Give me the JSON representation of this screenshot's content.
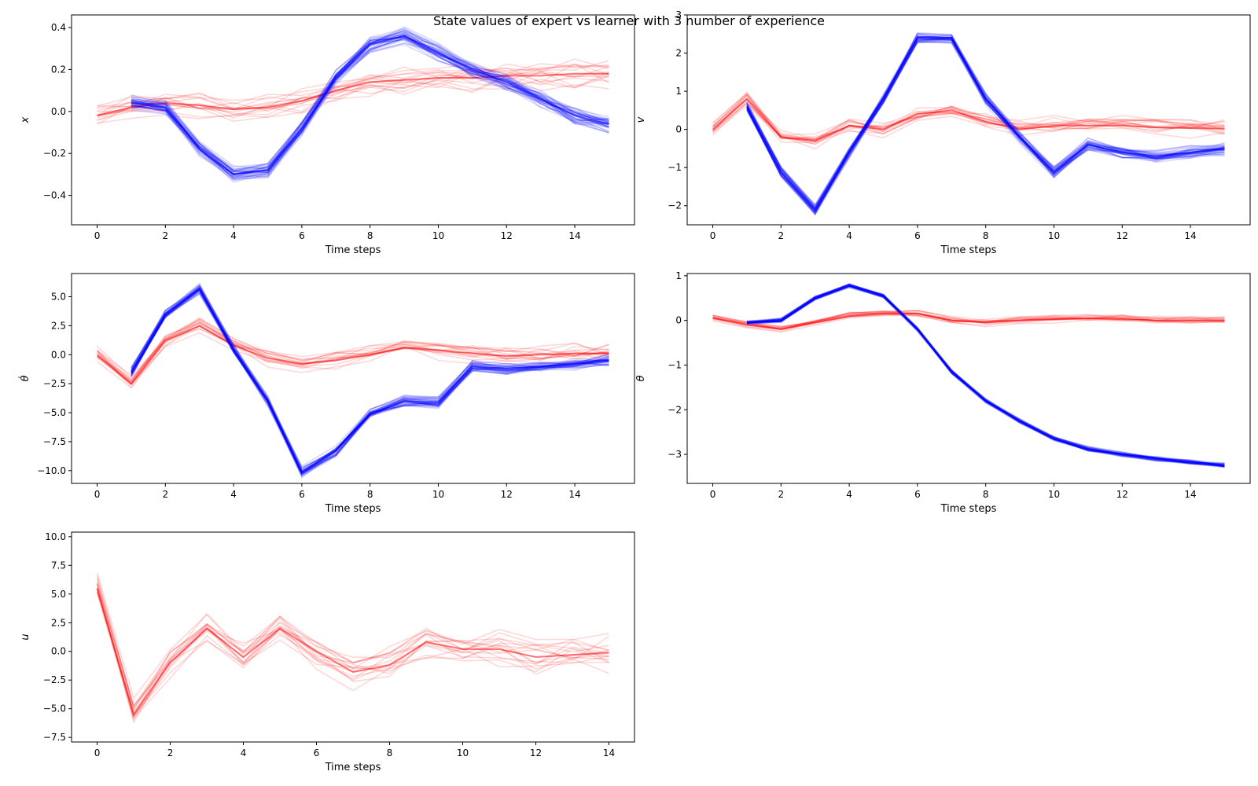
{
  "figure": {
    "title": "State values of expert vs learner with 3 number of experience",
    "colors": {
      "expert": "#ff0000",
      "learner": "#0000ff"
    }
  },
  "chart_data": [
    {
      "type": "line",
      "ylabel": "x",
      "xlabel": "Time steps",
      "xlim": [
        -0.75,
        15.75
      ],
      "ylim": [
        -0.54,
        0.46
      ],
      "xticks": [
        "0",
        "2",
        "4",
        "6",
        "8",
        "10",
        "12",
        "14"
      ],
      "yticks": [
        "−0.4",
        "−0.2",
        "0.0",
        "0.2",
        "0.4"
      ],
      "series": [
        {
          "group": "expert",
          "x": [
            0,
            1,
            2,
            3,
            4,
            5,
            6,
            7,
            8,
            9,
            10,
            11,
            12,
            13,
            14,
            15
          ],
          "values": [
            -0.02,
            0.02,
            0.04,
            0.03,
            0.01,
            0.02,
            0.05,
            0.1,
            0.14,
            0.15,
            0.16,
            0.16,
            0.17,
            0.17,
            0.18,
            0.18
          ]
        },
        {
          "group": "learner",
          "x": [
            1,
            2,
            3,
            4,
            5,
            6,
            7,
            8,
            9,
            10,
            11,
            12,
            13,
            14,
            15
          ],
          "values": [
            0.04,
            0.02,
            -0.18,
            -0.3,
            -0.28,
            -0.08,
            0.16,
            0.32,
            0.36,
            0.28,
            0.2,
            0.14,
            0.06,
            -0.02,
            -0.06
          ]
        }
      ]
    },
    {
      "type": "line",
      "ylabel": "v",
      "xlabel": "Time steps",
      "xlim": [
        -0.75,
        15.75
      ],
      "ylim": [
        -2.5,
        3.0
      ],
      "xticks": [
        "0",
        "2",
        "4",
        "6",
        "8",
        "10",
        "12",
        "14"
      ],
      "yticks": [
        "−2",
        "−1",
        "0",
        "1",
        "2",
        "3"
      ],
      "series": [
        {
          "group": "expert",
          "x": [
            0,
            1,
            2,
            3,
            4,
            5,
            6,
            7,
            8,
            9,
            10,
            11,
            12,
            13,
            14,
            15
          ],
          "values": [
            0.0,
            0.8,
            -0.2,
            -0.3,
            0.1,
            0.0,
            0.4,
            0.5,
            0.2,
            0.0,
            0.1,
            0.1,
            0.1,
            0.05,
            0.03,
            0.02
          ]
        },
        {
          "group": "learner",
          "x": [
            1,
            2,
            3,
            4,
            5,
            6,
            7,
            8,
            9,
            10,
            11,
            12,
            13,
            14,
            15
          ],
          "values": [
            0.6,
            -1.1,
            -2.1,
            -0.6,
            0.8,
            2.4,
            2.4,
            0.8,
            -0.2,
            -1.1,
            -0.4,
            -0.6,
            -0.7,
            -0.6,
            -0.5
          ]
        }
      ]
    },
    {
      "type": "line",
      "ylabel": "θ̇",
      "xlabel": "Time steps",
      "xlim": [
        -0.75,
        15.75
      ],
      "ylim": [
        -11.1,
        7.0
      ],
      "xticks": [
        "0",
        "2",
        "4",
        "6",
        "8",
        "10",
        "12",
        "14"
      ],
      "yticks": [
        "−10.0",
        "−7.5",
        "−5.0",
        "−2.5",
        "0.0",
        "2.5",
        "5.0"
      ],
      "series": [
        {
          "group": "expert",
          "x": [
            0,
            1,
            2,
            3,
            4,
            5,
            6,
            7,
            8,
            9,
            10,
            11,
            12,
            13,
            14,
            15
          ],
          "values": [
            0.0,
            -2.5,
            1.2,
            2.5,
            0.8,
            -0.3,
            -0.8,
            -0.5,
            0.0,
            0.6,
            0.4,
            0.1,
            -0.1,
            0.0,
            0.1,
            0.1
          ]
        },
        {
          "group": "learner",
          "x": [
            1,
            2,
            3,
            4,
            5,
            6,
            7,
            8,
            9,
            10,
            11,
            12,
            13,
            14,
            15
          ],
          "values": [
            -1.5,
            3.5,
            5.7,
            0.5,
            -4.0,
            -10.1,
            -8.3,
            -5.1,
            -4.0,
            -4.1,
            -1.0,
            -1.2,
            -1.0,
            -0.8,
            -0.5
          ]
        }
      ]
    },
    {
      "type": "line",
      "ylabel": "θ",
      "xlabel": "Time steps",
      "xlim": [
        -0.75,
        15.75
      ],
      "ylim": [
        -3.65,
        1.05
      ],
      "xticks": [
        "0",
        "2",
        "4",
        "6",
        "8",
        "10",
        "12",
        "14"
      ],
      "yticks": [
        "−3",
        "−2",
        "−1",
        "0",
        "1"
      ],
      "series": [
        {
          "group": "expert",
          "x": [
            0,
            1,
            2,
            3,
            4,
            5,
            6,
            7,
            8,
            9,
            10,
            11,
            12,
            13,
            14,
            15
          ],
          "values": [
            0.05,
            -0.1,
            -0.2,
            -0.05,
            0.1,
            0.15,
            0.15,
            0.0,
            -0.05,
            0.0,
            0.03,
            0.05,
            0.03,
            0.0,
            0.0,
            0.0
          ]
        },
        {
          "group": "learner",
          "x": [
            1,
            2,
            3,
            4,
            5,
            6,
            7,
            8,
            9,
            10,
            11,
            12,
            13,
            14,
            15
          ],
          "values": [
            -0.05,
            0.0,
            0.5,
            0.78,
            0.55,
            -0.2,
            -1.15,
            -1.8,
            -2.25,
            -2.65,
            -2.88,
            -3.0,
            -3.1,
            -3.18,
            -3.25
          ]
        }
      ]
    },
    {
      "type": "line",
      "ylabel": "u",
      "xlabel": "Time steps",
      "xlim": [
        -0.7,
        14.7
      ],
      "ylim": [
        -7.9,
        10.4
      ],
      "xticks": [
        "0",
        "2",
        "4",
        "6",
        "8",
        "10",
        "12",
        "14"
      ],
      "yticks": [
        "−7.5",
        "−5.0",
        "−2.5",
        "0.0",
        "2.5",
        "5.0",
        "7.5",
        "10.0"
      ],
      "series": [
        {
          "group": "expert",
          "x": [
            0,
            1,
            2,
            3,
            4,
            5,
            6,
            7,
            8,
            9,
            10,
            11,
            12,
            13,
            14
          ],
          "values": [
            5.5,
            -5.5,
            -1.0,
            2.0,
            -0.5,
            2.0,
            0.0,
            -1.8,
            -1.2,
            0.8,
            0.2,
            0.2,
            -0.5,
            -0.3,
            -0.1
          ]
        }
      ]
    }
  ]
}
